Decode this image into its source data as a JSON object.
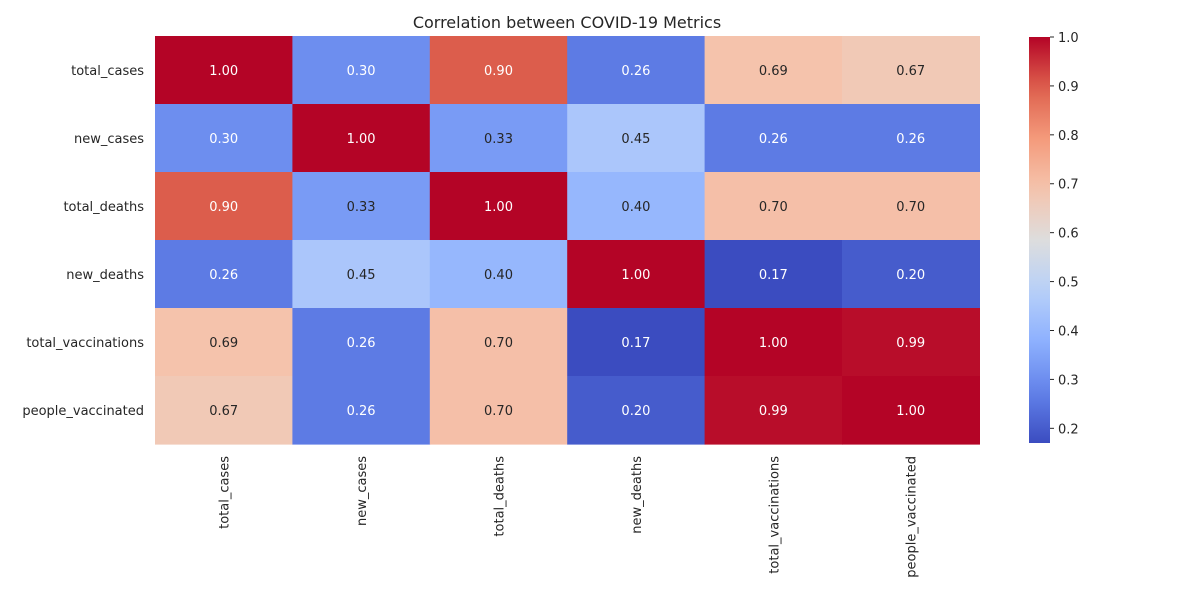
{
  "chart_data": {
    "type": "heatmap",
    "title": "Correlation between COVID-19 Metrics",
    "x_labels": [
      "total_cases",
      "new_cases",
      "total_deaths",
      "new_deaths",
      "total_vaccinations",
      "people_vaccinated"
    ],
    "y_labels": [
      "total_cases",
      "new_cases",
      "total_deaths",
      "new_deaths",
      "total_vaccinations",
      "people_vaccinated"
    ],
    "values": [
      [
        1.0,
        0.3,
        0.9,
        0.26,
        0.69,
        0.67
      ],
      [
        0.3,
        1.0,
        0.33,
        0.45,
        0.26,
        0.26
      ],
      [
        0.9,
        0.33,
        1.0,
        0.4,
        0.7,
        0.7
      ],
      [
        0.26,
        0.45,
        0.4,
        1.0,
        0.17,
        0.2
      ],
      [
        0.69,
        0.26,
        0.7,
        0.17,
        1.0,
        0.99
      ],
      [
        0.67,
        0.26,
        0.7,
        0.2,
        0.99,
        1.0
      ]
    ],
    "value_format": "0.00",
    "colormap": "coolwarm",
    "colorbar": {
      "range": [
        0.17,
        1.0
      ],
      "ticks": [
        "0.2",
        "0.3",
        "0.4",
        "0.5",
        "0.6",
        "0.7",
        "0.8",
        "0.9",
        "1.0"
      ],
      "tick_values": [
        0.2,
        0.3,
        0.4,
        0.5,
        0.6,
        0.7,
        0.8,
        0.9,
        1.0
      ]
    },
    "grid": false
  }
}
